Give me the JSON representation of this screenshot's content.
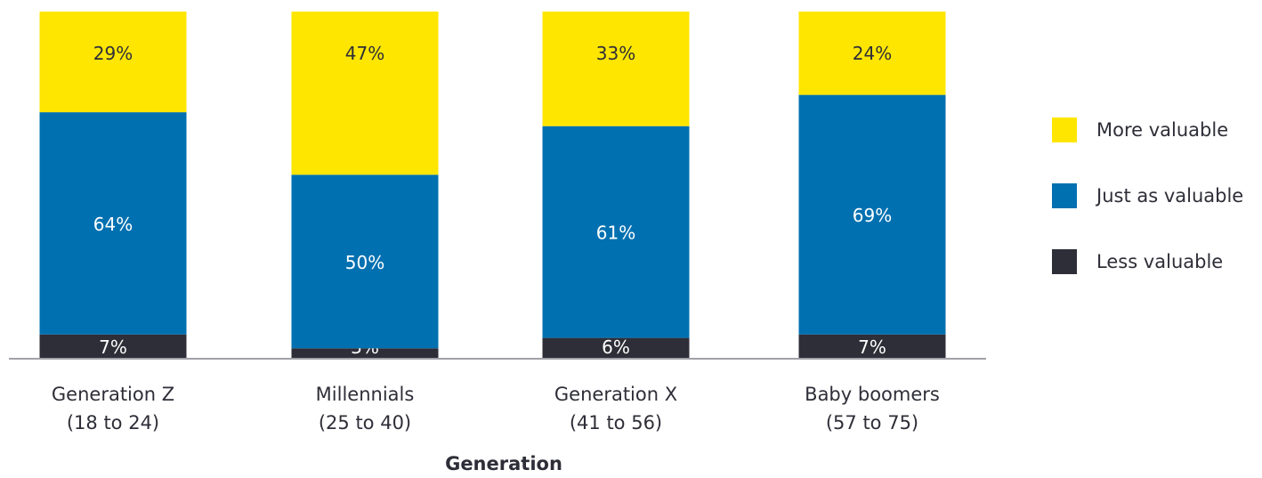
{
  "chart_data": {
    "type": "bar",
    "stacked": true,
    "categories": [
      [
        "Generation Z",
        "(18 to 24)"
      ],
      [
        "Millennials",
        "(25 to 40)"
      ],
      [
        "Generation X",
        "(41 to 56)"
      ],
      [
        "Baby boomers",
        "(57 to 75)"
      ]
    ],
    "series": [
      {
        "name": "Less valuable",
        "values": [
          7,
          3,
          6,
          7
        ],
        "color": "#2e2e38",
        "labels": [
          "7%",
          "3%",
          "6%",
          "7%"
        ]
      },
      {
        "name": "Just as valuable",
        "values": [
          64,
          50,
          61,
          69
        ],
        "color": "#0070b0",
        "labels": [
          "64%",
          "50%",
          "61%",
          "69%"
        ]
      },
      {
        "name": "More valuable",
        "values": [
          29,
          47,
          33,
          24
        ],
        "color": "#ffe600",
        "labels": [
          "29%",
          "47%",
          "33%",
          "24%"
        ]
      }
    ],
    "xlabel": "Generation",
    "ylabel": "",
    "ylim": [
      0,
      100
    ],
    "legend_position": "right",
    "legend_order": [
      "More valuable",
      "Just as valuable",
      "Less valuable"
    ],
    "grid": false
  }
}
